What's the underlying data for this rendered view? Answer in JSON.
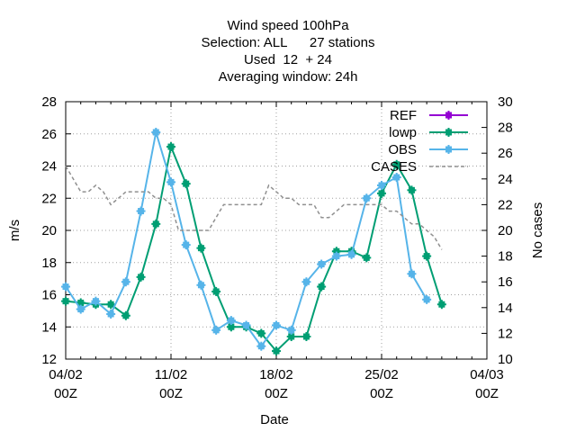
{
  "chart_data": {
    "type": "line",
    "title_lines": [
      "Wind speed 100hPa",
      "Selection: ALL      27 stations",
      "Used  12  + 24",
      "Averaging window: 24h"
    ],
    "xlabel": "Date",
    "ylabel": "m/s",
    "y2label": "No cases",
    "x_ticks": [
      {
        "day": 0,
        "line1": "04/02",
        "line2": "00Z"
      },
      {
        "day": 7,
        "line1": "11/02",
        "line2": "00Z"
      },
      {
        "day": 14,
        "line1": "18/02",
        "line2": "00Z"
      },
      {
        "day": 21,
        "line1": "25/02",
        "line2": "00Z"
      },
      {
        "day": 28,
        "line1": "04/03",
        "line2": "00Z"
      }
    ],
    "xlim": [
      0,
      28
    ],
    "ylim": [
      12,
      28
    ],
    "y_ticks": [
      12,
      14,
      16,
      18,
      20,
      22,
      24,
      26,
      28
    ],
    "y2lim": [
      10,
      30
    ],
    "y2_ticks": [
      10,
      12,
      14,
      16,
      18,
      20,
      22,
      24,
      26,
      28,
      30
    ],
    "grid": true,
    "legend_position": "top-right",
    "series": [
      {
        "name": "REF",
        "axis": "y1",
        "color": "#9400d3",
        "values": []
      },
      {
        "name": "lowp",
        "axis": "y1",
        "color": "#009e73",
        "x": [
          0,
          1,
          2,
          3,
          4,
          5,
          6,
          7,
          8,
          9,
          10,
          11,
          12,
          13,
          14,
          15,
          16,
          17,
          18,
          19,
          20,
          21,
          22,
          23,
          24,
          25,
          26,
          27
        ],
        "values": [
          15.6,
          15.5,
          15.4,
          15.4,
          14.7,
          17.1,
          20.4,
          25.2,
          22.9,
          18.9,
          16.2,
          14.0,
          14.0,
          13.6,
          12.5,
          13.4,
          13.4,
          16.5,
          18.7,
          18.7,
          18.3,
          22.3,
          24.1,
          22.5,
          18.4,
          15.4,
          null,
          null
        ]
      },
      {
        "name": "OBS",
        "axis": "y1",
        "color": "#56b4e9",
        "x": [
          0,
          1,
          2,
          3,
          4,
          5,
          6,
          7,
          8,
          9,
          10,
          11,
          12,
          13,
          14,
          15,
          16,
          17,
          18,
          19,
          20,
          21,
          22,
          23,
          24,
          25,
          26,
          27
        ],
        "values": [
          16.5,
          15.1,
          15.6,
          14.8,
          16.8,
          21.2,
          26.1,
          23.0,
          19.1,
          16.6,
          13.8,
          14.4,
          14.1,
          12.8,
          14.1,
          13.8,
          16.8,
          17.9,
          18.4,
          18.5,
          22.0,
          22.8,
          23.3,
          17.3,
          15.7,
          null,
          null,
          null
        ]
      },
      {
        "name": "CASES",
        "axis": "y2",
        "color": "#909090",
        "dashed": true,
        "x": [
          0,
          0.5,
          1,
          1.5,
          2,
          2.5,
          3,
          3.5,
          4,
          4.5,
          5,
          5.5,
          6,
          6.5,
          7,
          7.5,
          8,
          8.5,
          9,
          9.5,
          10,
          10.5,
          11,
          11.5,
          12,
          12.5,
          13,
          13.5,
          14,
          14.5,
          15,
          15.5,
          16,
          16.5,
          17,
          17.5,
          18,
          18.5,
          19,
          19.5,
          20,
          20.5,
          21,
          21.5,
          22,
          22.5,
          23,
          23.5,
          24,
          24.5,
          25
        ],
        "values": [
          25,
          24,
          23,
          23,
          23.5,
          23,
          22,
          22.5,
          23,
          23,
          23,
          23,
          22.5,
          22.5,
          22,
          20,
          20,
          20,
          20,
          20,
          21,
          22,
          22,
          22,
          22,
          22,
          22,
          23.5,
          23,
          22.5,
          22.5,
          22,
          22,
          22,
          21,
          21,
          21.5,
          22,
          22,
          22,
          22,
          22,
          22,
          21.5,
          21.5,
          21,
          20.5,
          20.5,
          20,
          19.5,
          18.5
        ]
      }
    ]
  }
}
